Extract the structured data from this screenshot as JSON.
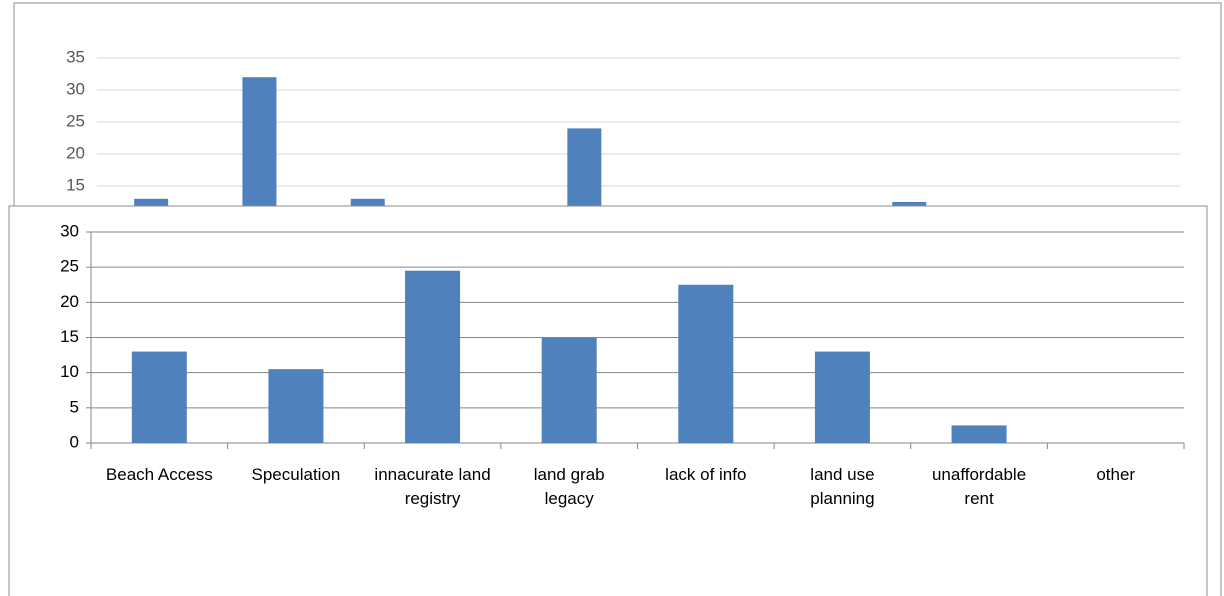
{
  "chart_data": [
    {
      "type": "bar",
      "categories": [
        null,
        null,
        null,
        null,
        null,
        null,
        null,
        null,
        null,
        null
      ],
      "values": [
        13,
        32,
        13,
        null,
        24,
        null,
        null,
        12.5,
        null,
        null
      ],
      "color": "#4f81bd",
      "ylim": [
        0,
        35
      ],
      "yticks": [
        15,
        20,
        25,
        30,
        35
      ],
      "grid": true
    },
    {
      "type": "bar",
      "categories": [
        "Beach Access",
        "Speculation",
        "innacurate land registry",
        "land grab legacy",
        "lack of info",
        "land use planning",
        "unaffordable rent",
        "other"
      ],
      "values": [
        13,
        10.5,
        24.5,
        15,
        22.5,
        13,
        2.5,
        0
      ],
      "color": "#4f81bd",
      "ylim": [
        0,
        30
      ],
      "yticks": [
        0,
        5,
        10,
        15,
        20,
        25,
        30
      ],
      "grid": true
    }
  ]
}
